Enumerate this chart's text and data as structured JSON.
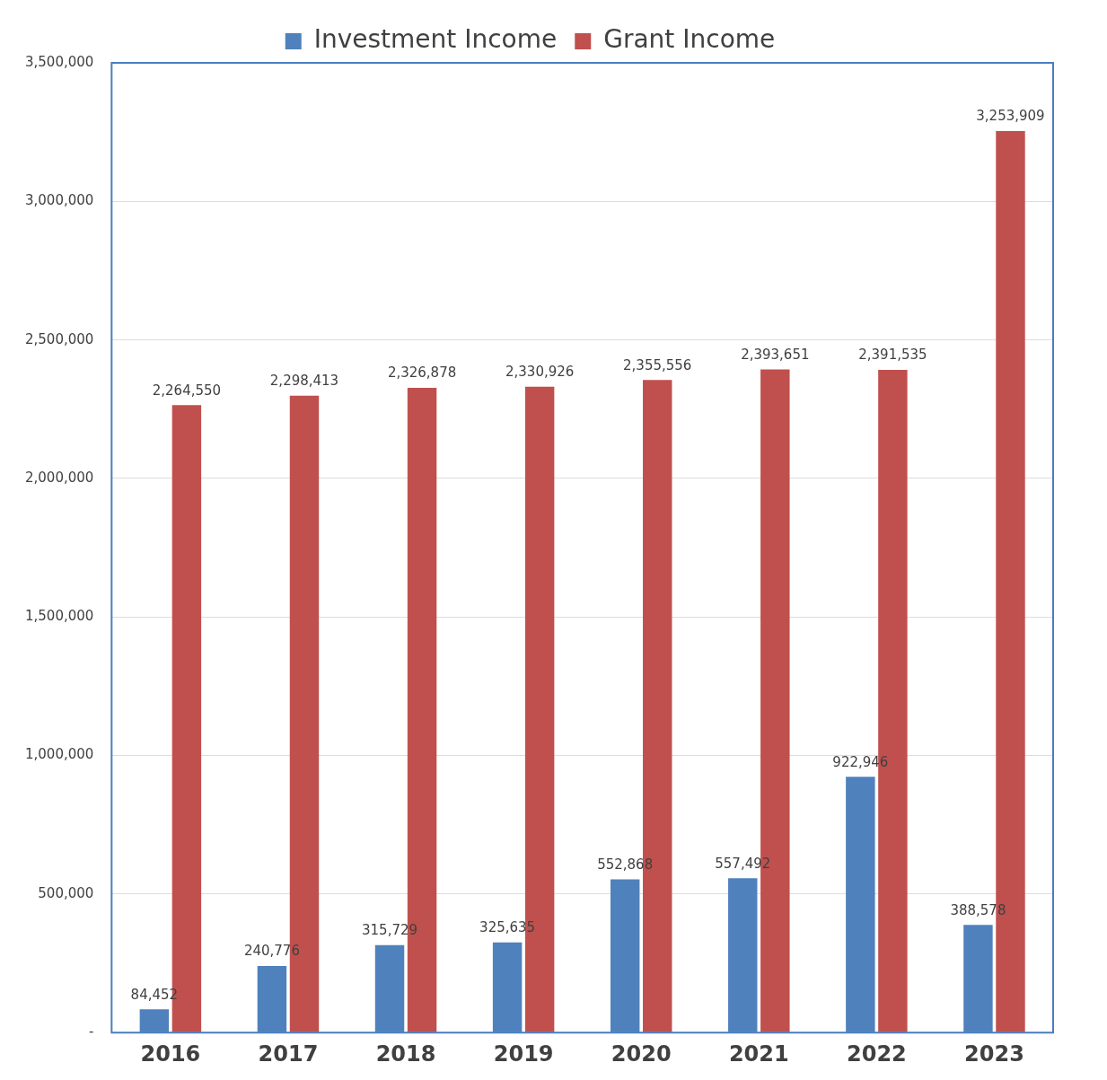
{
  "chart_data": {
    "type": "bar",
    "categories": [
      "2016",
      "2017",
      "2018",
      "2019",
      "2020",
      "2021",
      "2022",
      "2023"
    ],
    "series": [
      {
        "name": "Investment Income",
        "color": "#4f81bd",
        "values": [
          84452,
          240776,
          315729,
          325635,
          552868,
          557492,
          922946,
          388578
        ],
        "value_labels": [
          "84,452",
          "240,776",
          "315,729",
          "325,635",
          "552,868",
          "557,492",
          "922,946",
          "388,578"
        ]
      },
      {
        "name": "Grant Income",
        "color": "#c0504d",
        "values": [
          2264550,
          2298413,
          2326878,
          2330926,
          2355556,
          2393651,
          2391535,
          3253909
        ],
        "value_labels": [
          "2,264,550",
          "2,298,413",
          "2,326,878",
          "2,330,926",
          "2,355,556",
          "2,393,651",
          "2,391,535",
          "3,253,909"
        ]
      }
    ],
    "ylim": [
      0,
      3500000
    ],
    "yticks": [
      {
        "value": 0,
        "label": "-"
      },
      {
        "value": 500000,
        "label": "500,000"
      },
      {
        "value": 1000000,
        "label": "1,000,000"
      },
      {
        "value": 1500000,
        "label": "1,500,000"
      },
      {
        "value": 2000000,
        "label": "2,000,000"
      },
      {
        "value": 2500000,
        "label": "2,500,000"
      },
      {
        "value": 3000000,
        "label": "3,000,000"
      },
      {
        "value": 3500000,
        "label": "3,500,000"
      }
    ],
    "grid": "y",
    "legend": "top"
  }
}
